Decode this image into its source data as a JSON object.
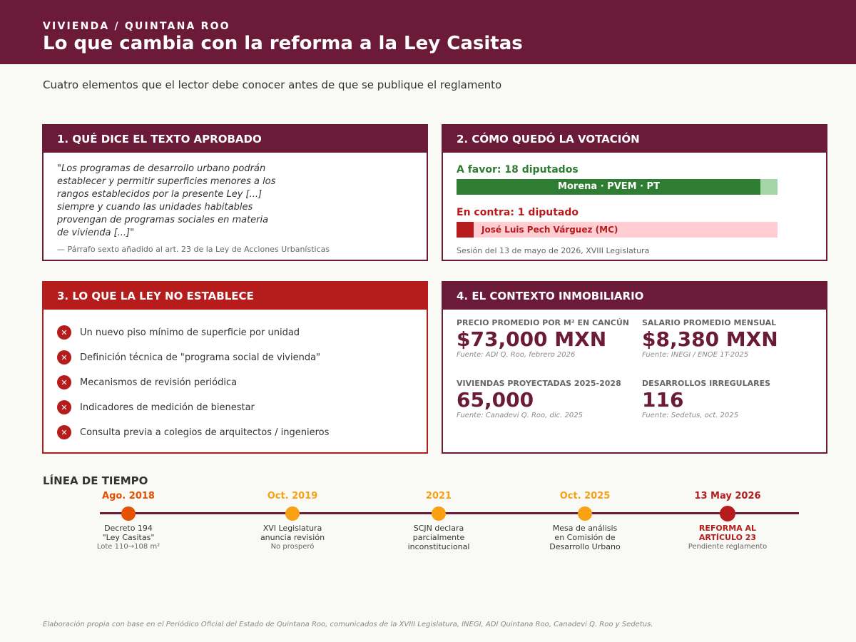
{
  "header": {
    "kicker": "VIVIENDA / QUINTANA ROO",
    "title": "Lo que cambia con la reforma a la Ley Casitas",
    "subtitle": "Cuatro elementos que el lector debe conocer antes de que se publique el reglamento"
  },
  "card1": {
    "title": "1. QUÉ DICE EL TEXTO APROBADO",
    "quote_lines": [
      "\"Los programas de desarrollo urbano podrán",
      "establecer y permitir superficies menores a los",
      "rangos establecidos por la presente Ley [...]",
      "siempre y cuando las unidades habitables",
      "provengan de programas sociales en materia",
      "de vivienda [...]\""
    ],
    "source": "— Párrafo sexto añadido al art. 23 de la Ley de Acciones Urbanísticas"
  },
  "card2": {
    "title": "2. CÓMO QUEDÓ LA VOTACIÓN",
    "for_label": "A favor: 18 diputados",
    "for_parties": "Morena · PVEM · PT",
    "for_count": 18,
    "against_label": "En contra: 1 diputado",
    "against_name": "José Luis Pech Várguez (MC)",
    "against_count": 1,
    "total": 19,
    "session": "Sesión del 13 de mayo de 2026, XVIII Legislatura",
    "colors": {
      "for": "#2e7d32",
      "for_bg": "#a5d6a7",
      "against": "#b71c1c",
      "against_bg": "#ffcdd2"
    }
  },
  "card3": {
    "title": "3. LO QUE LA LEY NO ESTABLECE",
    "icon": "x-circle-icon",
    "items": [
      "Un nuevo piso mínimo de superficie por unidad",
      "Definición técnica de \"programa social de vivienda\"",
      "Mecanismos de revisión periódica",
      "Indicadores de medición de bienestar",
      "Consulta previa a colegios de arquitectos / ingenieros"
    ]
  },
  "card4": {
    "title": "4. EL CONTEXTO INMOBILIARIO",
    "stats": [
      {
        "label": "PRECIO PROMEDIO POR M² EN CANCÚN",
        "value": "$73,000 MXN",
        "source": "Fuente: ADI Q. Roo, febrero 2026"
      },
      {
        "label": "SALARIO PROMEDIO MENSUAL",
        "value": "$8,380 MXN",
        "source": "Fuente: INEGI / ENOE 1T-2025"
      },
      {
        "label": "VIVIENDAS PROYECTADAS 2025-2028",
        "value": "65,000",
        "source": "Fuente: Canadevi Q. Roo, dic. 2025"
      },
      {
        "label": "DESARROLLOS IRREGULARES",
        "value": "116",
        "source": "Fuente: Sedetus, oct. 2025"
      }
    ]
  },
  "timeline": {
    "title": "LÍNEA DE TIEMPO",
    "events": [
      {
        "date": "Ago. 2018",
        "lines": [
          "Decreto 194",
          "\"Ley Casitas\""
        ],
        "note": "Lote 110→108 m²",
        "color": "#e65100",
        "highlight": false
      },
      {
        "date": "Oct. 2019",
        "lines": [
          "XVI Legislatura",
          "anuncia revisión"
        ],
        "note": "No prosperó",
        "color": "#f9a013",
        "highlight": false
      },
      {
        "date": "2021",
        "lines": [
          "SCJN declara",
          "parcialmente",
          "inconstitucional"
        ],
        "note": "",
        "color": "#f9a013",
        "highlight": false
      },
      {
        "date": "Oct. 2025",
        "lines": [
          "Mesa de análisis",
          "en Comisión de",
          "Desarrollo Urbano"
        ],
        "note": "",
        "color": "#f9a013",
        "highlight": false
      },
      {
        "date": "13 May 2026",
        "lines": [
          "REFORMA AL",
          "ARTÍCULO 23"
        ],
        "note": "Pendiente reglamento",
        "color": "#b71c1c",
        "highlight": true
      }
    ]
  },
  "footer": "Elaboración propia con base en el Periódico Oficial del Estado de Quintana Roo, comunicados de la XVIII Legislatura, INEGI, ADI Quintana Roo, Canadevi Q. Roo y Sedetus.",
  "colors": {
    "brand": "#6b1a37",
    "alert": "#b71c1c",
    "background": "#f9f9f5"
  }
}
